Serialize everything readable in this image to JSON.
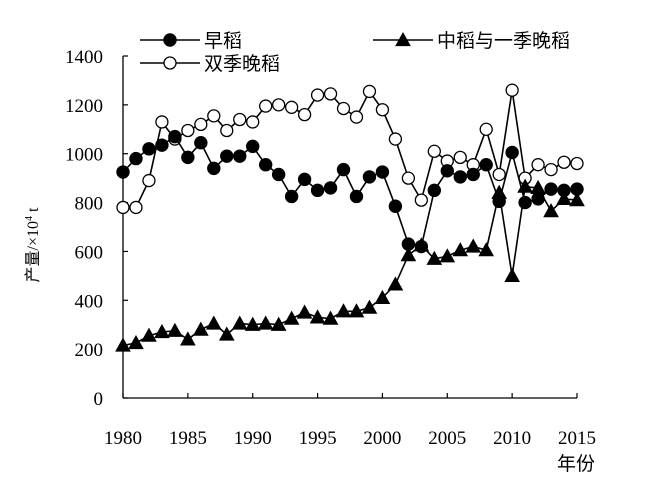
{
  "chart_data": {
    "type": "line",
    "title": "",
    "xlabel": "年份",
    "ylabel_main": "产量/×10",
    "ylabel_sup": "4",
    "ylabel_unit": " t",
    "xlim": [
      1980,
      2015
    ],
    "ylim": [
      0,
      1400
    ],
    "xticks": [
      1980,
      1985,
      1990,
      1995,
      2000,
      2005,
      2010,
      2015
    ],
    "yticks": [
      0,
      200,
      400,
      600,
      800,
      1000,
      1200,
      1400
    ],
    "grid": false,
    "legend_position": "top",
    "x": [
      1980,
      1981,
      1982,
      1983,
      1984,
      1985,
      1986,
      1987,
      1988,
      1989,
      1990,
      1991,
      1992,
      1993,
      1994,
      1995,
      1996,
      1997,
      1998,
      1999,
      2000,
      2001,
      2002,
      2003,
      2004,
      2005,
      2006,
      2007,
      2008,
      2009,
      2010,
      2011,
      2012,
      2013,
      2014,
      2015
    ],
    "series": [
      {
        "name": "早稻",
        "marker": "filled-circle",
        "values": [
          925,
          980,
          1020,
          1035,
          1070,
          985,
          1045,
          940,
          990,
          990,
          1030,
          955,
          915,
          825,
          895,
          850,
          860,
          935,
          825,
          905,
          925,
          785,
          630,
          620,
          850,
          930,
          905,
          915,
          955,
          805,
          1005,
          800,
          815,
          855,
          850,
          855
        ]
      },
      {
        "name": "双季晚稻",
        "marker": "open-circle",
        "values": [
          780,
          780,
          890,
          1130,
          1060,
          1095,
          1120,
          1155,
          1095,
          1140,
          1130,
          1195,
          1200,
          1190,
          1160,
          1240,
          1245,
          1185,
          1150,
          1255,
          1180,
          1060,
          900,
          810,
          1010,
          970,
          985,
          955,
          1100,
          915,
          1260,
          900,
          955,
          935,
          965,
          960
        ]
      },
      {
        "name": "中稻与一季晚稻",
        "marker": "filled-triangle",
        "values": [
          215,
          225,
          255,
          270,
          275,
          240,
          280,
          305,
          260,
          305,
          300,
          305,
          300,
          325,
          350,
          330,
          325,
          355,
          355,
          370,
          410,
          465,
          585,
          625,
          570,
          580,
          605,
          620,
          605,
          840,
          500,
          865,
          860,
          765,
          815,
          810
        ]
      }
    ]
  }
}
